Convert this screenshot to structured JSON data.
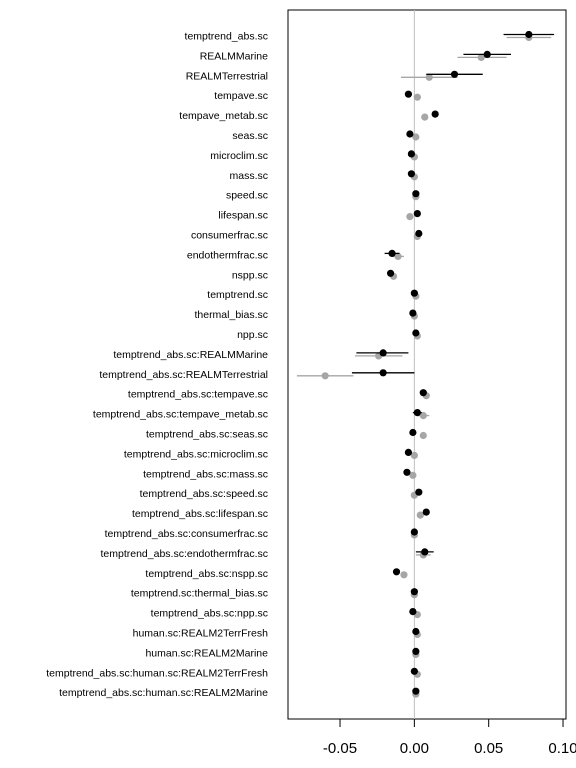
{
  "chart_data": {
    "type": "scatter",
    "subtype": "coefficient-plot",
    "xlim": [
      -0.085,
      0.102
    ],
    "x_ticks": [
      -0.05,
      0.0,
      0.05,
      0.1
    ],
    "x_tick_labels": [
      "-0.05",
      "0.00",
      "0.05",
      "0.10"
    ],
    "reference_line_x": 0,
    "grid": false,
    "legend": "none",
    "colors": {
      "series_a": "#000000",
      "series_b": "#a6a6a6",
      "reference": "#bfbfbf"
    },
    "series": [
      {
        "color": "#000000",
        "point_offset": "above"
      },
      {
        "color": "#a6a6a6",
        "point_offset": "below"
      }
    ],
    "categories": [
      "temptrend_abs.sc",
      "REALMMarine",
      "REALMTerrestrial",
      "tempave.sc",
      "tempave_metab.sc",
      "seas.sc",
      "microclim.sc",
      "mass.sc",
      "speed.sc",
      "lifespan.sc",
      "consumerfrac.sc",
      "endothermfrac.sc",
      "nspp.sc",
      "temptrend.sc",
      "thermal_bias.sc",
      "npp.sc",
      "temptrend_abs.sc:REALMMarine",
      "temptrend_abs.sc:REALMTerrestrial",
      "temptrend_abs.sc:tempave.sc",
      "temptrend_abs.sc:tempave_metab.sc",
      "temptrend_abs.sc:seas.sc",
      "temptrend_abs.sc:microclim.sc",
      "temptrend_abs.sc:mass.sc",
      "temptrend_abs.sc:speed.sc",
      "temptrend_abs.sc:lifespan.sc",
      "temptrend_abs.sc:consumerfrac.sc",
      "temptrend_abs.sc:endothermfrac.sc",
      "temptrend_abs.sc:nspp.sc",
      "temptrend.sc:thermal_bias.sc",
      "temptrend_abs.sc:npp.sc",
      "human.sc:REALM2TerrFresh",
      "human.sc:REALM2Marine",
      "temptrend_abs.sc:human.sc:REALM2TerrFresh",
      "temptrend_abs.sc:human.sc:REALM2Marine"
    ],
    "black": [
      [
        0.077,
        0.06,
        0.094
      ],
      [
        0.049,
        0.033,
        0.065
      ],
      [
        0.027,
        0.008,
        0.046
      ],
      [
        -0.004,
        -0.006,
        -0.002
      ],
      [
        0.014,
        0.012,
        0.016
      ],
      [
        -0.003,
        -0.005,
        -0.001
      ],
      [
        -0.002,
        -0.004,
        0.0
      ],
      [
        -0.002,
        -0.004,
        0.0
      ],
      [
        0.001,
        -0.001,
        0.003
      ],
      [
        0.002,
        0.0,
        0.004
      ],
      [
        0.003,
        0.001,
        0.005
      ],
      [
        -0.015,
        -0.02,
        -0.01
      ],
      [
        -0.016,
        -0.018,
        -0.014
      ],
      [
        0.0,
        -0.001,
        0.001
      ],
      [
        -0.001,
        -0.002,
        0.0
      ],
      [
        0.001,
        0.0,
        0.002
      ],
      [
        -0.021,
        -0.039,
        -0.004
      ],
      [
        -0.021,
        -0.042,
        0.0
      ],
      [
        0.006,
        0.004,
        0.008
      ],
      [
        0.002,
        -0.001,
        0.005
      ],
      [
        -0.001,
        -0.002,
        0.0
      ],
      [
        -0.004,
        -0.006,
        -0.002
      ],
      [
        -0.005,
        -0.007,
        -0.003
      ],
      [
        0.003,
        0.001,
        0.005
      ],
      [
        0.008,
        0.006,
        0.01
      ],
      [
        0.0,
        -0.001,
        0.001
      ],
      [
        0.007,
        0.001,
        0.013
      ],
      [
        -0.012,
        -0.014,
        -0.01
      ],
      [
        0.0,
        -0.001,
        0.001
      ],
      [
        -0.001,
        -0.002,
        0.0
      ],
      [
        0.001,
        0.0,
        0.002
      ],
      [
        0.001,
        0.0,
        0.002
      ],
      [
        0.0,
        -0.001,
        0.001
      ],
      [
        0.001,
        0.0,
        0.002
      ]
    ],
    "gray": [
      [
        0.077,
        0.062,
        0.092
      ],
      [
        0.045,
        0.029,
        0.062
      ],
      [
        0.01,
        -0.009,
        0.029
      ],
      [
        0.002,
        0.001,
        0.003
      ],
      [
        0.007,
        0.006,
        0.008
      ],
      [
        0.001,
        0.0,
        0.002
      ],
      [
        0.0,
        -0.001,
        0.001
      ],
      [
        0.0,
        -0.001,
        0.001
      ],
      [
        0.001,
        0.0,
        0.002
      ],
      [
        -0.003,
        -0.004,
        -0.002
      ],
      [
        0.002,
        0.001,
        0.003
      ],
      [
        -0.011,
        -0.015,
        -0.007
      ],
      [
        -0.014,
        -0.016,
        -0.012
      ],
      [
        0.001,
        0.0,
        0.002
      ],
      [
        0.0,
        -0.001,
        0.001
      ],
      [
        0.002,
        0.001,
        0.003
      ],
      [
        -0.024,
        -0.04,
        -0.008
      ],
      [
        -0.06,
        -0.079,
        -0.041
      ],
      [
        0.008,
        0.006,
        0.01
      ],
      [
        0.006,
        0.002,
        0.01
      ],
      [
        0.006,
        0.005,
        0.007
      ],
      [
        0.0,
        -0.001,
        0.001
      ],
      [
        -0.001,
        -0.002,
        0.0
      ],
      [
        0.0,
        -0.001,
        0.001
      ],
      [
        0.004,
        0.002,
        0.006
      ],
      [
        0.0,
        -0.001,
        0.001
      ],
      [
        0.006,
        0.001,
        0.011
      ],
      [
        -0.007,
        -0.009,
        -0.005
      ],
      [
        0.0,
        -0.001,
        0.001
      ],
      [
        0.002,
        0.001,
        0.003
      ],
      [
        0.002,
        0.001,
        0.003
      ],
      [
        0.001,
        0.0,
        0.002
      ],
      [
        0.002,
        0.001,
        0.003
      ],
      [
        0.001,
        0.0,
        0.002
      ]
    ]
  }
}
